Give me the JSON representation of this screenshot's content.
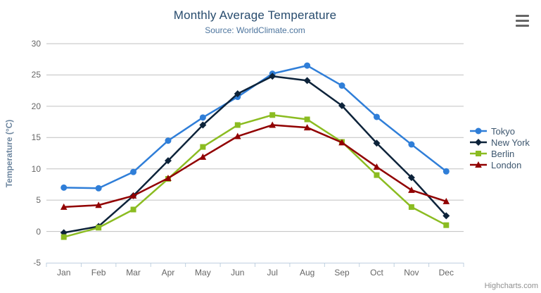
{
  "chart": {
    "credits": "Highcharts.com"
  },
  "chart_data": {
    "type": "line",
    "title": "Monthly Average Temperature",
    "subtitle": "Source: WorldClimate.com",
    "xlabel": "",
    "ylabel": "Temperature (°C)",
    "categories": [
      "Jan",
      "Feb",
      "Mar",
      "Apr",
      "May",
      "Jun",
      "Jul",
      "Aug",
      "Sep",
      "Oct",
      "Nov",
      "Dec"
    ],
    "ylim": [
      -5,
      30
    ],
    "ytick_interval": 5,
    "grid": true,
    "legend_position": "right",
    "axis_colors": {
      "grid_line": "#c0c0c0",
      "axis_line": "#c0d0e0",
      "tick": "#c0d0e0",
      "label": "#666666"
    },
    "series": [
      {
        "name": "Tokyo",
        "color": "#2f7ed8",
        "marker": "circle",
        "values": [
          7.0,
          6.9,
          9.5,
          14.5,
          18.2,
          21.5,
          25.2,
          26.5,
          23.3,
          18.3,
          13.9,
          9.6
        ]
      },
      {
        "name": "New York",
        "color": "#0d233a",
        "marker": "diamond",
        "values": [
          -0.2,
          0.8,
          5.7,
          11.3,
          17.0,
          22.0,
          24.8,
          24.1,
          20.1,
          14.1,
          8.6,
          2.5
        ]
      },
      {
        "name": "Berlin",
        "color": "#8bbc21",
        "marker": "square",
        "values": [
          -0.9,
          0.6,
          3.5,
          8.4,
          13.5,
          17.0,
          18.6,
          17.9,
          14.3,
          9.0,
          3.9,
          1.0
        ]
      },
      {
        "name": "London",
        "color": "#910000",
        "marker": "triangle",
        "values": [
          3.9,
          4.2,
          5.7,
          8.5,
          11.9,
          15.2,
          17.0,
          16.6,
          14.2,
          10.3,
          6.6,
          4.8
        ]
      }
    ]
  }
}
